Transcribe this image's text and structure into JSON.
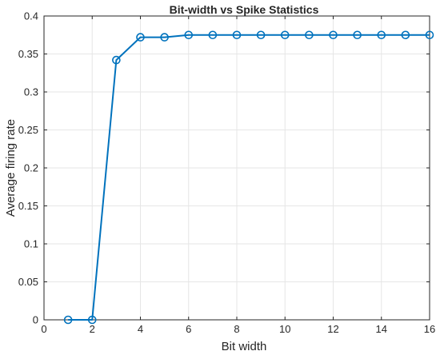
{
  "chart_data": {
    "type": "line",
    "title": "Bit-width vs Spike Statistics",
    "xlabel": "Bit width",
    "ylabel": "Average firing rate",
    "xlim": [
      0,
      16
    ],
    "ylim": [
      0,
      0.4
    ],
    "x_ticks": [
      0,
      2,
      4,
      6,
      8,
      10,
      12,
      14,
      16
    ],
    "x_tick_labels": [
      "0",
      "2",
      "4",
      "6",
      "8",
      "10",
      "12",
      "14",
      "16"
    ],
    "y_ticks": [
      0,
      0.05,
      0.1,
      0.15,
      0.2,
      0.25,
      0.3,
      0.35,
      0.4
    ],
    "y_tick_labels": [
      "0",
      "0.05",
      "0.1",
      "0.15",
      "0.2",
      "0.25",
      "0.3",
      "0.35",
      "0.4"
    ],
    "grid": true,
    "legend": "none",
    "marker": "circle",
    "series": [
      {
        "color": "#0072BD",
        "x": [
          1,
          2,
          3,
          4,
          5,
          6,
          7,
          8,
          9,
          10,
          11,
          12,
          13,
          14,
          15,
          16
        ],
        "y": [
          0,
          0,
          0.342,
          0.372,
          0.372,
          0.375,
          0.375,
          0.375,
          0.375,
          0.375,
          0.375,
          0.375,
          0.375,
          0.375,
          0.375,
          0.375
        ]
      }
    ]
  }
}
